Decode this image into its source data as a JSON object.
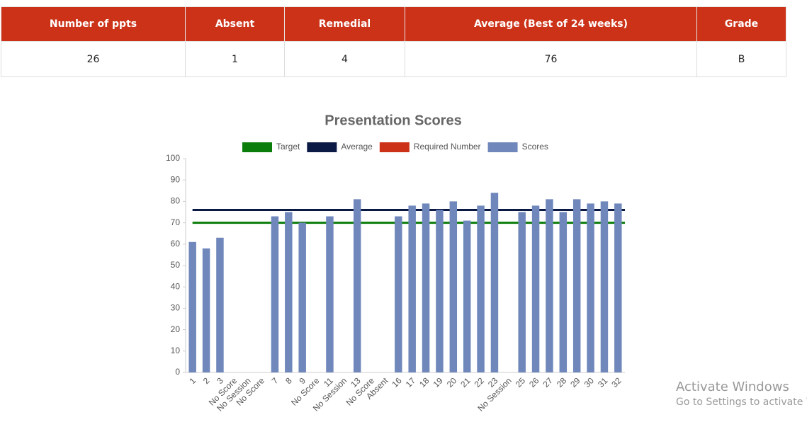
{
  "table": {
    "headers": [
      "Number of ppts",
      "Absent",
      "Remedial",
      "Average (Best of 24 weeks)",
      "Grade"
    ],
    "rows": [
      [
        "26",
        "1",
        "4",
        "76",
        "B"
      ]
    ]
  },
  "chart_data": {
    "type": "bar",
    "title": "Presentation Scores",
    "categories": [
      "1",
      "2",
      "3",
      "No Score",
      "No Session",
      "No Score",
      "7",
      "8",
      "9",
      "No Score",
      "11",
      "No Session",
      "13",
      "No Score",
      "Absent",
      "16",
      "17",
      "18",
      "19",
      "20",
      "21",
      "22",
      "23",
      "No Session",
      "25",
      "26",
      "27",
      "28",
      "29",
      "30",
      "31",
      "32"
    ],
    "series": [
      {
        "name": "Target",
        "color": "#0a7d0a",
        "value": 70
      },
      {
        "name": "Average",
        "color": "#0b1a45",
        "value": 76
      },
      {
        "name": "Required Number",
        "color": "#cc3218"
      },
      {
        "name": "Scores",
        "color": "#6f87bb",
        "values": [
          61,
          58,
          63,
          null,
          null,
          null,
          73,
          75,
          70,
          null,
          73,
          null,
          81,
          null,
          null,
          73,
          78,
          79,
          76,
          80,
          71,
          78,
          84,
          null,
          75,
          78,
          81,
          75,
          81,
          79,
          80,
          79
        ]
      }
    ],
    "ylim": [
      0,
      100
    ],
    "yticks": [
      0,
      10,
      20,
      30,
      40,
      50,
      60,
      70,
      80,
      90,
      100
    ],
    "grid": false
  },
  "watermark": {
    "line1": "Activate Windows",
    "line2": "Go to Settings to activate Windows."
  }
}
